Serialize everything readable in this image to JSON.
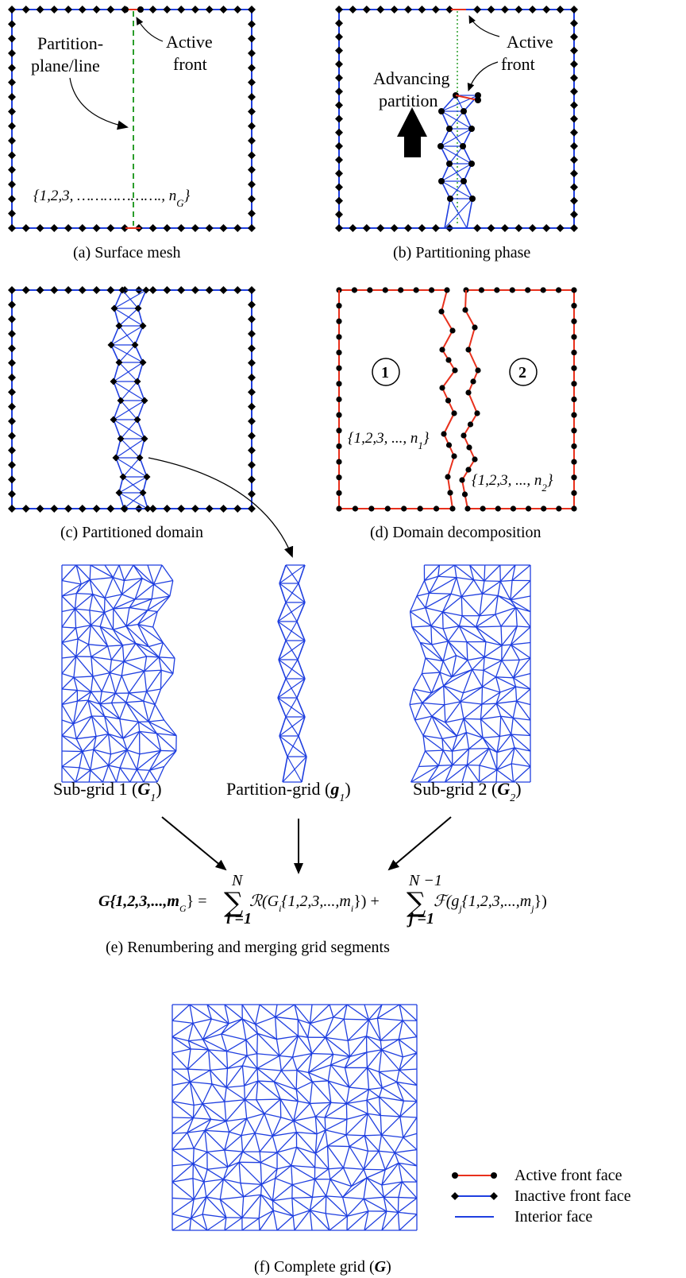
{
  "colors": {
    "active": "#e8301c",
    "inactive": "#1f3fe0",
    "interior": "#1f3fe0",
    "node_active": "#000000",
    "node_inactive": "#000000"
  },
  "panel_a": {
    "caption": "(a) Surface mesh",
    "partition_label_line1": "Partition-",
    "partition_label_line2": "plane/line",
    "active_front_line1": "Active",
    "active_front_line2": "front",
    "node_seq_prefix": "{1,2,3,  ……………….,  n",
    "node_seq_sub": "G",
    "node_seq_suffix": "}"
  },
  "panel_b": {
    "caption": "(b) Partitioning phase",
    "advancing_line1": "Advancing",
    "advancing_line2": "partition",
    "active_front_line1": "Active",
    "active_front_line2": "front"
  },
  "panel_c": {
    "caption": "(c) Partitioned domain"
  },
  "panel_d": {
    "caption": "(d) Domain decomposition",
    "circle1": "1",
    "circle2": "2",
    "seq1_prefix": "{1,2,3, ..., n",
    "seq1_sub": "1",
    "seq1_suffix": "}",
    "seq2_prefix": "{1,2,3, ..., n",
    "seq2_sub": "2",
    "seq2_suffix": "}"
  },
  "subgrids": {
    "sub1_label": "Sub-grid 1 (",
    "sub1_G": "G",
    "sub1_sub": "1",
    "sub1_close": ")",
    "partition_label": "Partition-grid (",
    "partition_g": "g",
    "partition_sub": "1",
    "partition_close": ")",
    "sub2_label": "Sub-grid 2 (",
    "sub2_G": "G",
    "sub2_sub": "2",
    "sub2_close": ")"
  },
  "formula": {
    "lhs": "G{1,2,3,...,m",
    "lhs_sub": "G",
    "lhs_close": "} =",
    "sum1_top": "N",
    "sum1_bottom": "i =1",
    "term1": "ℛ(G",
    "term1_sub": "i",
    "term1_rest": "{1,2,3,...,m",
    "term1_sub2": "i",
    "term1_close": "}) +",
    "sum2_top": "N −1",
    "sum2_bottom": "j =1",
    "term2": "ℱ(g",
    "term2_sub": "j",
    "term2_rest": "{1,2,3,...,m",
    "term2_sub2": "j",
    "term2_close": "})",
    "caption": "(e) Renumbering and merging grid segments"
  },
  "panel_f": {
    "caption_prefix": "(f) Complete grid  (",
    "caption_G": "G",
    "caption_close": ")"
  },
  "legend": {
    "active": "Active front face",
    "inactive": "Inactive front face",
    "interior": "Interior face"
  }
}
